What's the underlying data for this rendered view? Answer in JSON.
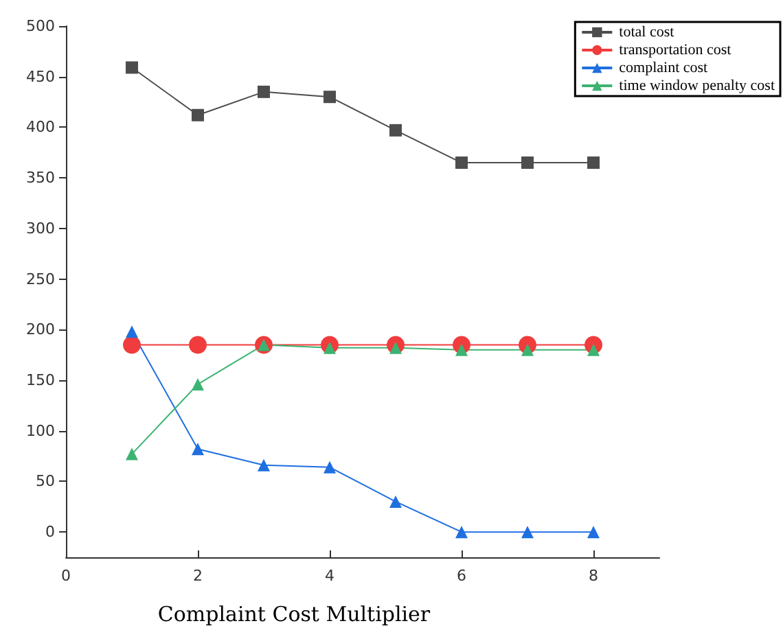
{
  "chart_data": {
    "type": "line",
    "xlabel": "Complaint Cost Multiplier",
    "x": [
      1,
      2,
      3,
      4,
      5,
      6,
      7,
      8
    ],
    "xlim": [
      0,
      9
    ],
    "xticks": [
      0,
      2,
      4,
      6,
      8
    ],
    "ylim": [
      -25,
      500
    ],
    "yticks": [
      0,
      50,
      100,
      150,
      200,
      250,
      300,
      350,
      400,
      450,
      500
    ],
    "grid": false,
    "legend": "top right",
    "series": [
      {
        "name": "total cost",
        "color": "#4d4d4d",
        "marker": "square",
        "values": [
          459,
          412,
          435,
          430,
          397,
          365,
          365,
          365
        ]
      },
      {
        "name": "transportation cost",
        "color": "#f03c3c",
        "marker": "circle",
        "values": [
          185,
          185,
          185,
          185,
          185,
          185,
          185,
          185
        ]
      },
      {
        "name": "complaint cost",
        "color": "#1f6fe0",
        "marker": "triangle",
        "values": [
          198,
          82,
          66,
          64,
          30,
          0,
          0,
          0
        ]
      },
      {
        "name": "time window penalty cost",
        "color": "#3cb371",
        "marker": "triangle",
        "values": [
          77,
          146,
          185,
          182,
          182,
          180,
          180,
          180
        ]
      }
    ]
  }
}
